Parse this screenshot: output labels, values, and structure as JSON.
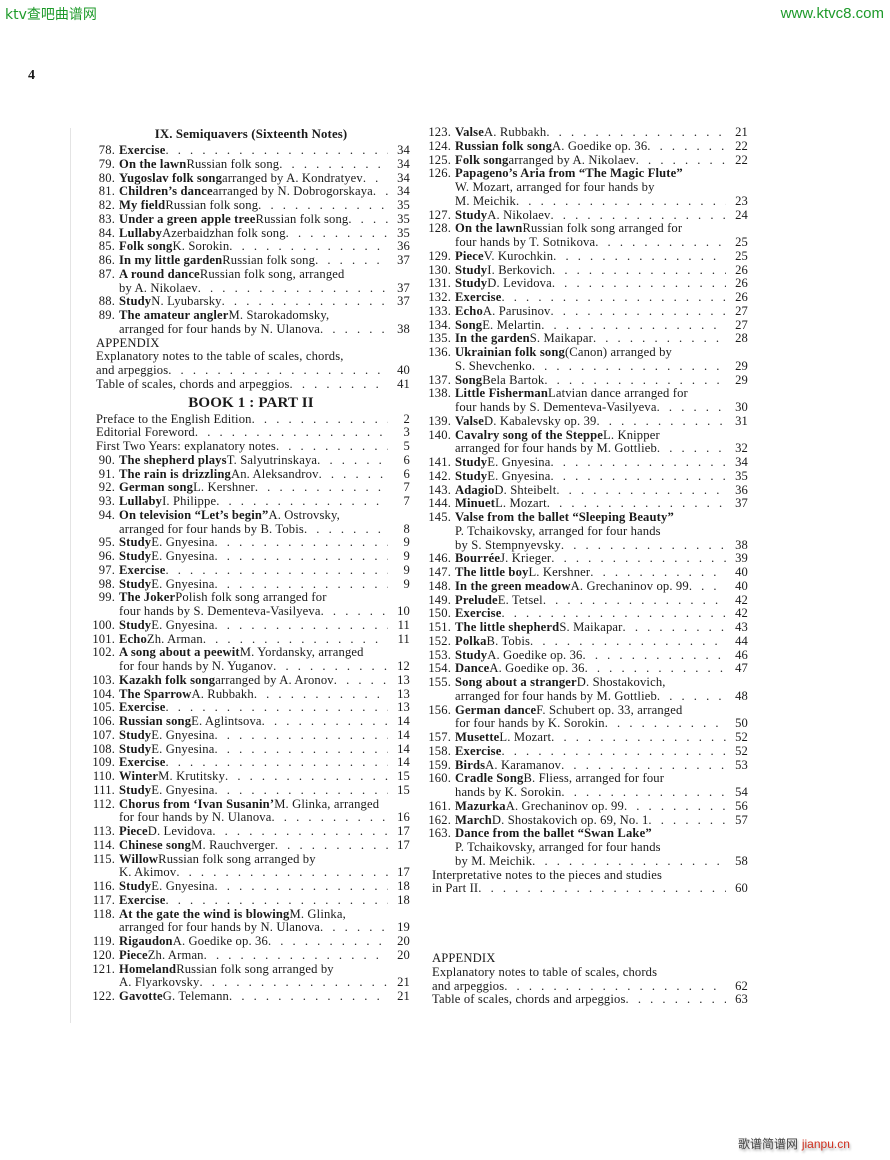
{
  "watermarks": {
    "top_left": "ktv查吧曲谱网",
    "top_right": "www.ktvc8.com",
    "bottom_right_cn": "歌谱简谱网",
    "bottom_right_en": "jianpu.cn"
  },
  "page_number": "4",
  "left": [
    {
      "type": "heading",
      "text": "IX. Semiquavers (Sixteenth Notes)"
    },
    {
      "type": "entry",
      "num": "78.",
      "bold": "Exercise",
      "text": "",
      "page": "34"
    },
    {
      "type": "entry",
      "num": "79.",
      "bold": "On the lawn",
      "text": " Russian folk song",
      "page": "34"
    },
    {
      "type": "entry",
      "num": "80.",
      "bold": "Yugoslav folk song",
      "text": " arranged by A. Kondratyev",
      "page": "34"
    },
    {
      "type": "entry",
      "num": "81.",
      "bold": "Children’s dance",
      "text": " arranged by N. Dobrogorskaya",
      "page": "34"
    },
    {
      "type": "entry",
      "num": "82.",
      "bold": "My field",
      "text": " Russian folk song",
      "page": "35"
    },
    {
      "type": "entry",
      "num": "83.",
      "bold": "Under a green apple tree",
      "text": " Russian folk song",
      "page": "35"
    },
    {
      "type": "entry",
      "num": "84.",
      "bold": "Lullaby",
      "text": " Azerbaidzhan folk song",
      "page": "35"
    },
    {
      "type": "entry",
      "num": "85.",
      "bold": "Folk song",
      "text": " K. Sorokin",
      "page": "36"
    },
    {
      "type": "entry",
      "num": "86.",
      "bold": "In my little garden",
      "text": " Russian folk song",
      "page": "37"
    },
    {
      "type": "entry",
      "num": "87.",
      "bold": "A round dance",
      "text": " Russian folk song, arranged",
      "cont": [
        "by A. Nikolaev"
      ],
      "page": "37"
    },
    {
      "type": "entry",
      "num": "88.",
      "bold": "Study",
      "text": " N. Lyubarsky",
      "page": "37"
    },
    {
      "type": "entry",
      "num": "89.",
      "bold": "The amateur angler",
      "text": " M. Starokadomsky,",
      "cont": [
        "arranged for four hands by N. Ulanova"
      ],
      "page": "38"
    },
    {
      "type": "plain",
      "lines": [
        "APPENDIX"
      ]
    },
    {
      "type": "plain",
      "lines": [
        "Explanatory notes to the table of scales, chords,",
        "and arpeggios"
      ],
      "page": "40"
    },
    {
      "type": "plain",
      "lines": [
        "Table of scales, chords and arpeggios"
      ],
      "page": "41"
    },
    {
      "type": "book",
      "text": "BOOK 1 : PART II"
    },
    {
      "type": "plain",
      "lines": [
        "Preface to the English Edition"
      ],
      "page": "2"
    },
    {
      "type": "plain",
      "lines": [
        "Editorial Foreword"
      ],
      "page": "3"
    },
    {
      "type": "plain",
      "lines": [
        "First Two Years: explanatory notes"
      ],
      "page": "5"
    },
    {
      "type": "entry",
      "num": "90.",
      "bold": "The shepherd plays",
      "text": " T. Salyutrinskaya",
      "page": "6"
    },
    {
      "type": "entry",
      "num": "91.",
      "bold": "The rain is drizzling",
      "text": " An. Aleksandrov",
      "page": "6"
    },
    {
      "type": "entry",
      "num": "92.",
      "bold": "German song",
      "text": " L. Kershner",
      "page": "7"
    },
    {
      "type": "entry",
      "num": "93.",
      "bold": "Lullaby",
      "text": " I. Philippe",
      "page": "7"
    },
    {
      "type": "entry",
      "num": "94.",
      "bold": "On television “Let’s begin”",
      "text": " A. Ostrovsky,",
      "cont": [
        "arranged for four hands by B. Tobis"
      ],
      "page": "8"
    },
    {
      "type": "entry",
      "num": "95.",
      "bold": "Study",
      "text": " E. Gnyesina",
      "page": "9"
    },
    {
      "type": "entry",
      "num": "96.",
      "bold": "Study",
      "text": " E. Gnyesina",
      "page": "9"
    },
    {
      "type": "entry",
      "num": "97.",
      "bold": "Exercise",
      "text": "",
      "page": "9"
    },
    {
      "type": "entry",
      "num": "98.",
      "bold": "Study",
      "text": " E. Gnyesina",
      "page": "9"
    },
    {
      "type": "entry",
      "num": "99.",
      "bold": "The Joker",
      "text": " Polish folk song arranged for",
      "cont": [
        "four hands by S. Dementeva-Vasilyeva"
      ],
      "page": "10"
    },
    {
      "type": "entry",
      "num": "100.",
      "bold": "Study",
      "text": " E. Gnyesina",
      "page": "11"
    },
    {
      "type": "entry",
      "num": "101.",
      "bold": "Echo",
      "text": " Zh. Arman",
      "page": "11"
    },
    {
      "type": "entry",
      "num": "102.",
      "bold": "A song about a peewit",
      "text": " M. Yordansky, arranged",
      "cont": [
        "for four hands by N. Yuganov"
      ],
      "page": "12"
    },
    {
      "type": "entry",
      "num": "103.",
      "bold": "Kazakh folk song",
      "text": " arranged by A. Aronov",
      "page": "13"
    },
    {
      "type": "entry",
      "num": "104.",
      "bold": "The Sparrow",
      "text": " A. Rubbakh",
      "page": "13"
    },
    {
      "type": "entry",
      "num": "105.",
      "bold": "Exercise",
      "text": "",
      "page": "13"
    },
    {
      "type": "entry",
      "num": "106.",
      "bold": "Russian song",
      "text": " E. Aglintsova",
      "page": "14"
    },
    {
      "type": "entry",
      "num": "107.",
      "bold": "Study",
      "text": " E. Gnyesina",
      "page": "14"
    },
    {
      "type": "entry",
      "num": "108.",
      "bold": "Study",
      "text": " E. Gnyesina",
      "page": "14"
    },
    {
      "type": "entry",
      "num": "109.",
      "bold": "Exercise",
      "text": "",
      "page": "14"
    },
    {
      "type": "entry",
      "num": "110.",
      "bold": "Winter",
      "text": " M. Krutitsky",
      "page": "15"
    },
    {
      "type": "entry",
      "num": "111.",
      "bold": "Study",
      "text": " E. Gnyesina",
      "page": "15"
    },
    {
      "type": "entry",
      "num": "112.",
      "bold": "Chorus from ‘Ivan Susanin’",
      "text": " M. Glinka, arranged",
      "cont": [
        "for four hands by N. Ulanova"
      ],
      "page": "16"
    },
    {
      "type": "entry",
      "num": "113.",
      "bold": "Piece",
      "text": " D. Levidova",
      "page": "17"
    },
    {
      "type": "entry",
      "num": "114.",
      "bold": "Chinese song",
      "text": " M. Rauchverger",
      "page": "17"
    },
    {
      "type": "entry",
      "num": "115.",
      "bold": "Willow",
      "text": " Russian folk song arranged by",
      "cont": [
        "K. Akimov"
      ],
      "page": "17"
    },
    {
      "type": "entry",
      "num": "116.",
      "bold": "Study",
      "text": " E. Gnyesina",
      "page": "18"
    },
    {
      "type": "entry",
      "num": "117.",
      "bold": "Exercise",
      "text": "",
      "page": "18"
    },
    {
      "type": "entry",
      "num": "118.",
      "bold": "At the gate the wind is blowing",
      "text": " M. Glinka,",
      "cont": [
        "arranged for four hands by N. Ulanova"
      ],
      "page": "19"
    },
    {
      "type": "entry",
      "num": "119.",
      "bold": "Rigaudon",
      "text": " A. Goedike op. 36",
      "page": "20"
    },
    {
      "type": "entry",
      "num": "120.",
      "bold": "Piece",
      "text": " Zh. Arman",
      "page": "20"
    },
    {
      "type": "entry",
      "num": "121.",
      "bold": "Homeland",
      "text": " Russian folk song arranged by",
      "cont": [
        "A. Flyarkovsky"
      ],
      "page": "21"
    },
    {
      "type": "entry",
      "num": "122.",
      "bold": "Gavotte",
      "text": " G. Telemann",
      "page": "21"
    }
  ],
  "right": [
    {
      "type": "entry",
      "num": "123.",
      "bold": "Valse",
      "text": " A. Rubbakh",
      "page": "21"
    },
    {
      "type": "entry",
      "num": "124.",
      "bold": "Russian folk song",
      "text": " A. Goedike op. 36",
      "page": "22"
    },
    {
      "type": "entry",
      "num": "125.",
      "bold": "Folk song",
      "text": " arranged by A. Nikolaev",
      "page": "22"
    },
    {
      "type": "entry",
      "num": "126.",
      "bold": "Papageno’s Aria from “The Magic Flute”",
      "text": "",
      "cont": [
        "W. Mozart, arranged for four hands by",
        "M. Meichik"
      ],
      "page": "23"
    },
    {
      "type": "entry",
      "num": "127.",
      "bold": "Study",
      "text": " A. Nikolaev",
      "page": "24"
    },
    {
      "type": "entry",
      "num": "128.",
      "bold": "On the lawn",
      "text": " Russian folk song arranged for",
      "cont": [
        "four hands by T. Sotnikova"
      ],
      "page": "25"
    },
    {
      "type": "entry",
      "num": "129.",
      "bold": "Piece",
      "text": " V. Kurochkin",
      "page": "25"
    },
    {
      "type": "entry",
      "num": "130.",
      "bold": "Study",
      "text": " I. Berkovich",
      "page": "26"
    },
    {
      "type": "entry",
      "num": "131.",
      "bold": "Study",
      "text": " D. Levidova",
      "page": "26"
    },
    {
      "type": "entry",
      "num": "132.",
      "bold": "Exercise",
      "text": "",
      "page": "26"
    },
    {
      "type": "entry",
      "num": "133.",
      "bold": "Echo",
      "text": " A. Parusinov",
      "page": "27"
    },
    {
      "type": "entry",
      "num": "134.",
      "bold": "Song",
      "text": " E. Melartin",
      "page": "27"
    },
    {
      "type": "entry",
      "num": "135.",
      "bold": "In the garden",
      "text": " S. Maikapar",
      "page": "28"
    },
    {
      "type": "entry",
      "num": "136.",
      "bold": "Ukrainian folk song",
      "text": " (Canon) arranged by",
      "cont": [
        "S. Shevchenko"
      ],
      "page": "29"
    },
    {
      "type": "entry",
      "num": "137.",
      "bold": "Song",
      "text": " Bela Bartok",
      "page": "29"
    },
    {
      "type": "entry",
      "num": "138.",
      "bold": "Little Fisherman",
      "text": " Latvian dance arranged for",
      "cont": [
        "four hands by S. Dementeva-Vasilyeva"
      ],
      "page": "30"
    },
    {
      "type": "entry",
      "num": "139.",
      "bold": "Valse",
      "text": " D. Kabalevsky op. 39",
      "page": "31"
    },
    {
      "type": "entry",
      "num": "140.",
      "bold": "Cavalry song of the Steppe",
      "text": " L. Knipper",
      "cont": [
        "arranged for four hands by M. Gottlieb"
      ],
      "page": "32"
    },
    {
      "type": "entry",
      "num": "141.",
      "bold": "Study",
      "text": " E. Gnyesina",
      "page": "34"
    },
    {
      "type": "entry",
      "num": "142.",
      "bold": "Study",
      "text": " E. Gnyesina",
      "page": "35"
    },
    {
      "type": "entry",
      "num": "143.",
      "bold": "Adagio",
      "text": " D. Shteibelt",
      "page": "36"
    },
    {
      "type": "entry",
      "num": "144.",
      "bold": "Minuet",
      "text": " L. Mozart",
      "page": "37"
    },
    {
      "type": "entry",
      "num": "145.",
      "bold": "Valse from the ballet “Sleeping Beauty”",
      "text": "",
      "cont": [
        "P. Tchaikovsky, arranged for four hands",
        "by S. Stempnyevsky"
      ],
      "page": "38"
    },
    {
      "type": "entry",
      "num": "146.",
      "bold": "Bourrée",
      "text": " J. Krieger",
      "page": "39"
    },
    {
      "type": "entry",
      "num": "147.",
      "bold": "The little boy",
      "text": " L. Kershner",
      "page": "40"
    },
    {
      "type": "entry",
      "num": "148.",
      "bold": "In the green meadow",
      "text": " A. Grechaninov op. 99",
      "page": "40"
    },
    {
      "type": "entry",
      "num": "149.",
      "bold": "Prelude",
      "text": " E. Tetsel",
      "page": "42"
    },
    {
      "type": "entry",
      "num": "150.",
      "bold": "Exercise",
      "text": "",
      "page": "42"
    },
    {
      "type": "entry",
      "num": "151.",
      "bold": "The little shepherd",
      "text": " S. Maikapar",
      "page": "43"
    },
    {
      "type": "entry",
      "num": "152.",
      "bold": "Polka",
      "text": " B. Tobis",
      "page": "44"
    },
    {
      "type": "entry",
      "num": "153.",
      "bold": "Study",
      "text": " A. Goedike op. 36",
      "page": "46"
    },
    {
      "type": "entry",
      "num": "154.",
      "bold": "Dance",
      "text": " A. Goedike op. 36",
      "page": "47"
    },
    {
      "type": "entry",
      "num": "155.",
      "bold": "Song about a stranger",
      "text": " D. Shostakovich,",
      "cont": [
        "arranged for four hands by M. Gottlieb"
      ],
      "page": "48"
    },
    {
      "type": "entry",
      "num": "156.",
      "bold": "German dance",
      "text": " F. Schubert op. 33, arranged",
      "cont": [
        "for four hands by K. Sorokin"
      ],
      "page": "50"
    },
    {
      "type": "entry",
      "num": "157.",
      "bold": "Musette",
      "text": " L. Mozart",
      "page": "52"
    },
    {
      "type": "entry",
      "num": "158.",
      "bold": "Exercise",
      "text": "",
      "page": "52"
    },
    {
      "type": "entry",
      "num": "159.",
      "bold": "Birds",
      "text": " A. Karamanov",
      "page": "53"
    },
    {
      "type": "entry",
      "num": "160.",
      "bold": "Cradle Song",
      "text": " B. Fliess, arranged for four",
      "cont": [
        "hands by K. Sorokin"
      ],
      "page": "54"
    },
    {
      "type": "entry",
      "num": "161.",
      "bold": "Mazurka",
      "text": " A. Grechaninov op. 99",
      "page": "56"
    },
    {
      "type": "entry",
      "num": "162.",
      "bold": "March",
      "text": " D. Shostakovich op. 69, No. 1",
      "page": "57"
    },
    {
      "type": "entry",
      "num": "163.",
      "bold": "Dance from the ballet “Swan Lake”",
      "text": "",
      "cont": [
        "P. Tchaikovsky, arranged for four hands",
        "by M. Meichik"
      ],
      "page": "58"
    },
    {
      "type": "plain",
      "lines": [
        "Interpretative notes to the pieces and studies",
        "in Part II"
      ],
      "page": "60"
    },
    {
      "type": "gap"
    },
    {
      "type": "plain",
      "lines": [
        "APPENDIX"
      ]
    },
    {
      "type": "plain",
      "lines": [
        "Explanatory notes to table of scales, chords",
        "and arpeggios"
      ],
      "page": "62"
    },
    {
      "type": "plain",
      "lines": [
        "Table of scales, chords and arpeggios"
      ],
      "page": "63"
    }
  ]
}
